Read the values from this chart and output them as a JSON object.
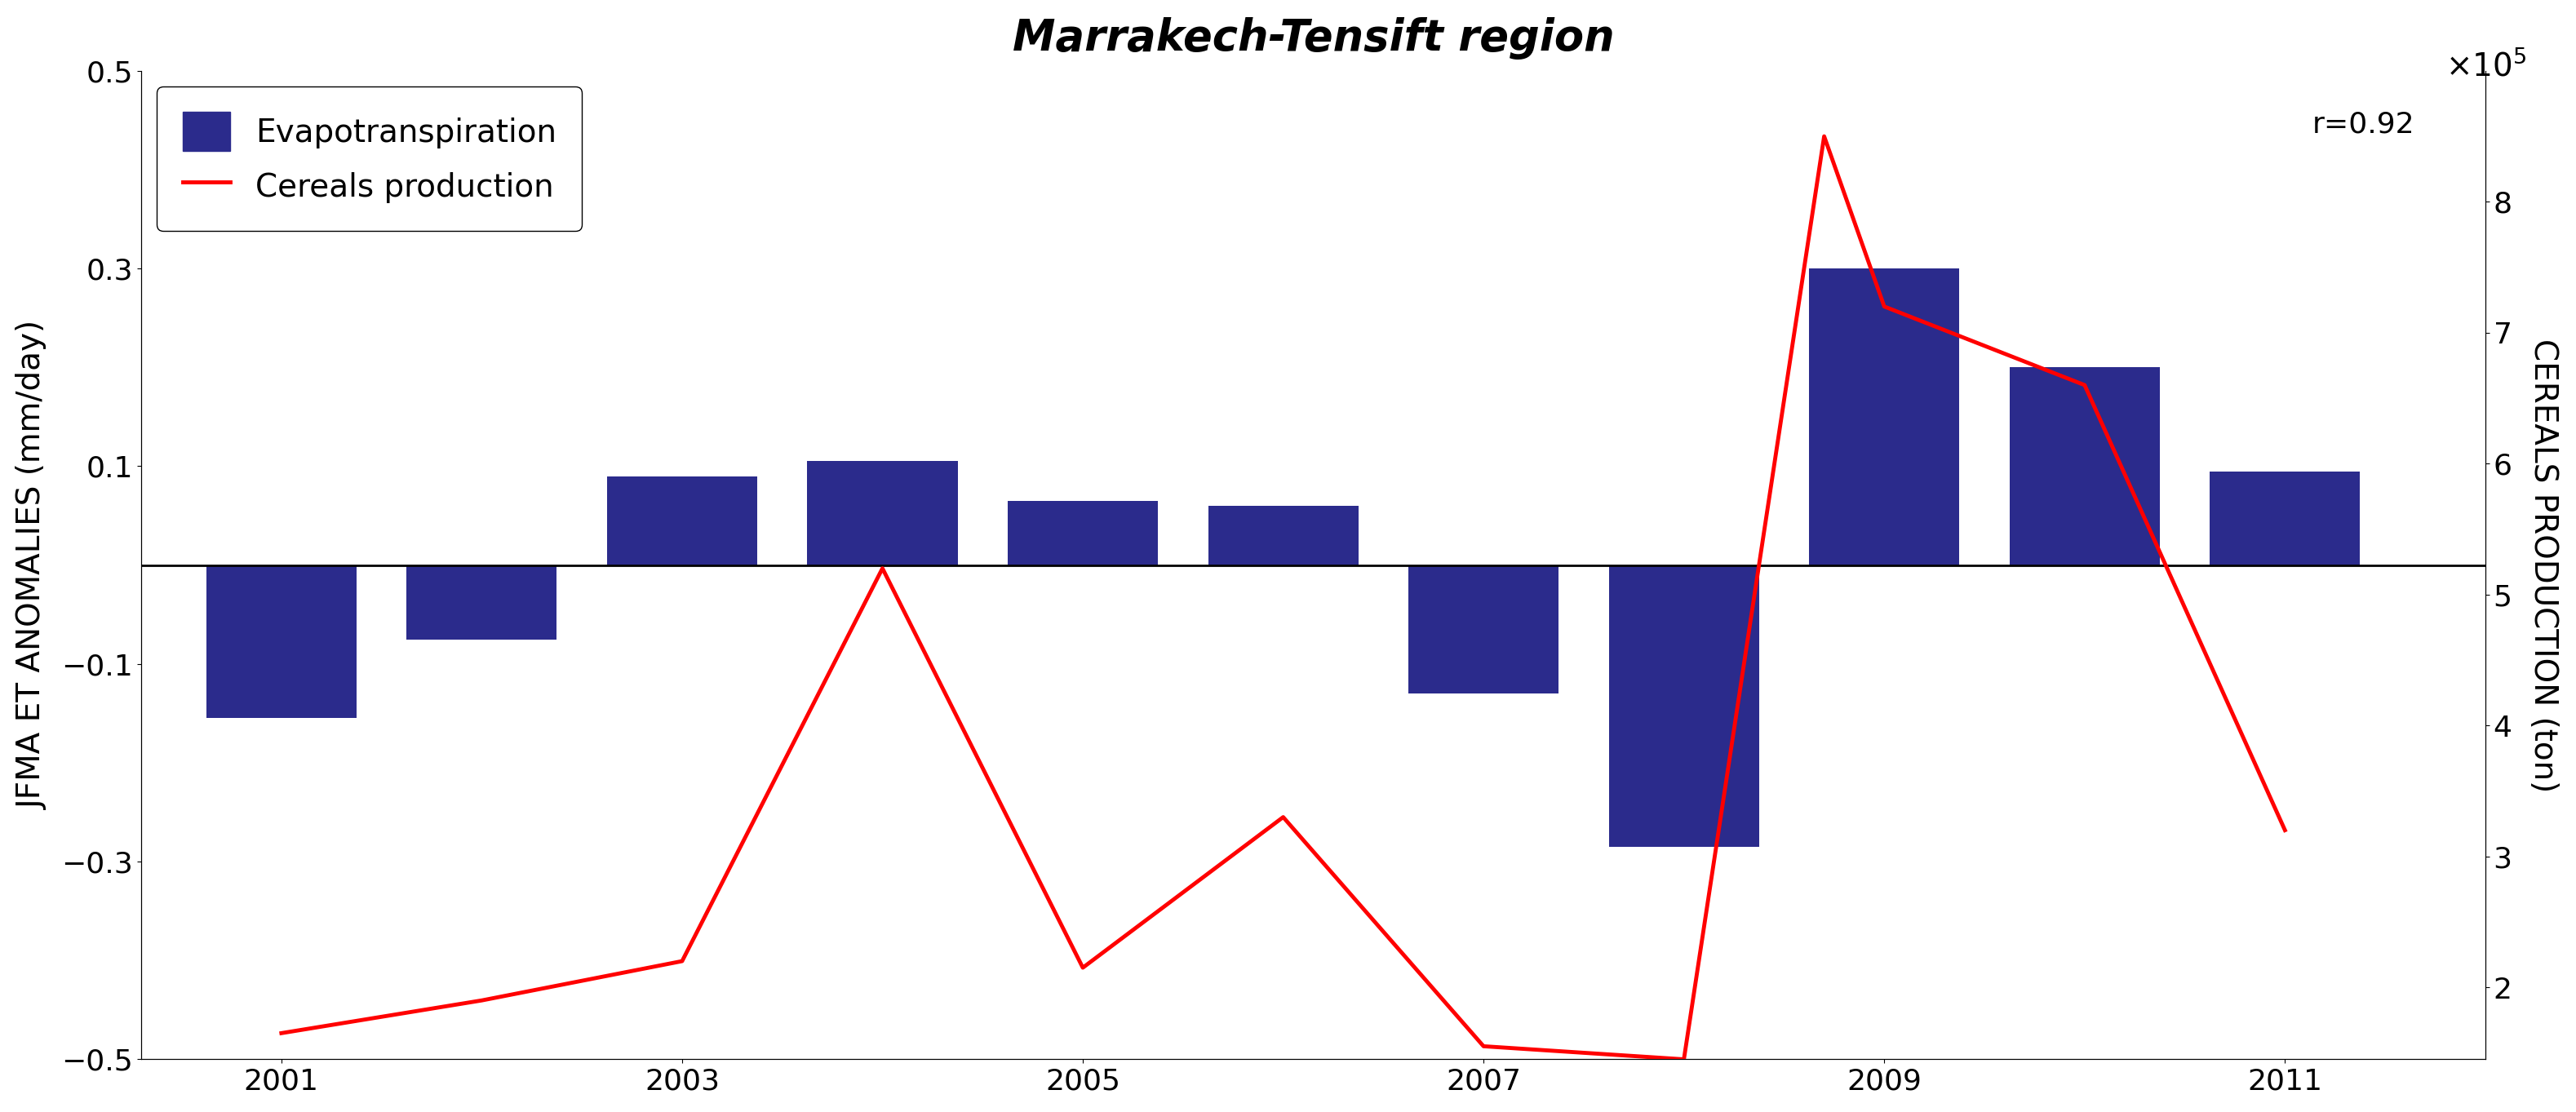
{
  "title": "Marrakech-Tensift region",
  "bar_years": [
    2001,
    2002,
    2003,
    2004,
    2005,
    2006,
    2007,
    2008,
    2009,
    2010,
    2011
  ],
  "bar_values": [
    -0.155,
    -0.075,
    0.09,
    0.105,
    0.065,
    0.06,
    -0.13,
    -0.285,
    0.3,
    0.2,
    0.095
  ],
  "bar_color": "#2B2B8C",
  "line_x": [
    2001,
    2002,
    2003,
    2004,
    2005,
    2006,
    2007,
    2008,
    2008.7,
    2009,
    2010,
    2011
  ],
  "line_y": [
    1.65,
    1.9,
    2.2,
    5.2,
    2.15,
    3.3,
    1.55,
    1.45,
    8.5,
    7.2,
    6.6,
    3.2
  ],
  "line_color": "#FF0000",
  "ylabel_left": "JFMA ET ANOMALIES (mm/day)",
  "ylabel_right": "CEREALS PRODUCTION (ton)",
  "ylim_left": [
    -0.5,
    0.5
  ],
  "ylim_right": [
    1.45,
    9.0
  ],
  "yticks_left": [
    -0.5,
    -0.3,
    -0.1,
    0.1,
    0.3,
    0.5
  ],
  "yticks_right": [
    2,
    3,
    4,
    5,
    6,
    7,
    8
  ],
  "xlim": [
    2000.3,
    2012.0
  ],
  "xticks": [
    2001,
    2003,
    2005,
    2007,
    2009,
    2011
  ],
  "hline_y": 0.0,
  "r_label": "r=0.92",
  "legend_labels": [
    "Evapotranspiration",
    "Cereals production"
  ],
  "bar_width": 0.75,
  "title_fontsize": 38,
  "label_fontsize": 28,
  "tick_fontsize": 26,
  "legend_fontsize": 28,
  "annot_fontsize": 26,
  "multiplier_fontsize": 28,
  "linewidth": 3.5
}
